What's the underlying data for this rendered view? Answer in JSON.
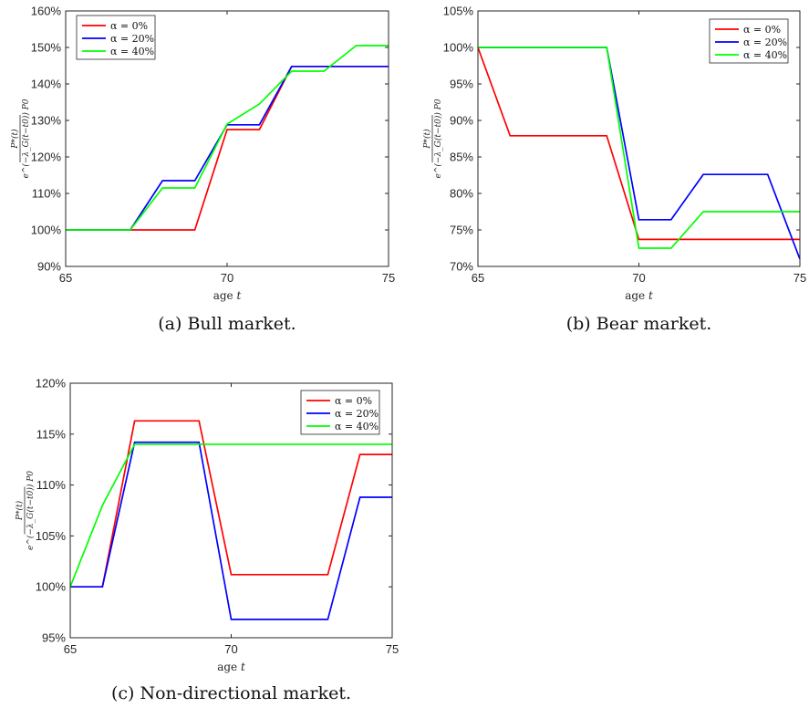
{
  "chart_data": [
    {
      "type": "line",
      "caption": "(a) Bull market.",
      "xlabel": "age t",
      "ylabel": "P*(t) / e^(−λ_G(t−t0)) P0",
      "x": [
        65,
        66,
        67,
        68,
        69,
        70,
        71,
        72,
        73,
        74,
        75
      ],
      "xlim": [
        65,
        75
      ],
      "ylim": [
        90,
        160
      ],
      "xticks": [
        "65",
        "70",
        "75"
      ],
      "yticks": [
        "90%",
        "100%",
        "110%",
        "120%",
        "130%",
        "140%",
        "150%",
        "160%"
      ],
      "legend_position": "top-left",
      "series": [
        {
          "name": "α = 0%",
          "color": "#ff0000",
          "values": [
            100,
            100,
            100,
            100,
            100,
            127.5,
            127.5,
            144.8,
            144.8,
            144.8,
            144.8
          ]
        },
        {
          "name": "α = 20%",
          "color": "#0000ff",
          "values": [
            100,
            100,
            100,
            113.5,
            113.5,
            128.8,
            128.8,
            144.8,
            144.8,
            144.8,
            144.8
          ]
        },
        {
          "name": "α = 40%",
          "color": "#00ff00",
          "values": [
            100,
            100,
            100,
            111.5,
            111.5,
            129.0,
            134.5,
            143.5,
            143.5,
            150.5,
            150.5
          ]
        }
      ]
    },
    {
      "type": "line",
      "caption": "(b) Bear market.",
      "xlabel": "age t",
      "ylabel": "P*(t) / e^(−λ_G(t−t0)) P0",
      "x": [
        65,
        66,
        67,
        68,
        69,
        70,
        71,
        72,
        73,
        74,
        75
      ],
      "xlim": [
        65,
        75
      ],
      "ylim": [
        70,
        105
      ],
      "xticks": [
        "65",
        "70",
        "75"
      ],
      "yticks": [
        "70%",
        "75%",
        "80%",
        "85%",
        "90%",
        "95%",
        "100%",
        "105%"
      ],
      "legend_position": "top-right",
      "series": [
        {
          "name": "α = 0%",
          "color": "#ff0000",
          "values": [
            100,
            87.9,
            87.9,
            87.9,
            87.9,
            73.7,
            73.7,
            73.7,
            73.7,
            73.7,
            73.7
          ]
        },
        {
          "name": "α = 20%",
          "color": "#0000ff",
          "values": [
            100,
            100,
            100,
            100,
            100,
            76.4,
            76.4,
            82.6,
            82.6,
            82.6,
            71.0
          ]
        },
        {
          "name": "α = 40%",
          "color": "#00ff00",
          "values": [
            100,
            100,
            100,
            100,
            100,
            72.5,
            72.5,
            77.5,
            77.5,
            77.5,
            77.5
          ]
        }
      ]
    },
    {
      "type": "line",
      "caption": "(c) Non-directional market.",
      "xlabel": "age t",
      "ylabel": "P*(t) / e^(−λ_G(t−t0)) P0",
      "x": [
        65,
        66,
        67,
        68,
        69,
        70,
        71,
        72,
        73,
        74,
        75
      ],
      "xlim": [
        65,
        75
      ],
      "ylim": [
        95,
        120
      ],
      "xticks": [
        "65",
        "70",
        "75"
      ],
      "yticks": [
        "95%",
        "100%",
        "105%",
        "110%",
        "115%",
        "120%"
      ],
      "legend_position": "top-right",
      "series": [
        {
          "name": "α = 0%",
          "color": "#ff0000",
          "values": [
            100,
            100,
            116.3,
            116.3,
            116.3,
            101.2,
            101.2,
            101.2,
            101.2,
            113.0,
            113.0
          ]
        },
        {
          "name": "α = 20%",
          "color": "#0000ff",
          "values": [
            100,
            100,
            114.2,
            114.2,
            114.2,
            96.8,
            96.8,
            96.8,
            96.8,
            108.8,
            108.8
          ]
        },
        {
          "name": "α = 40%",
          "color": "#00ff00",
          "values": [
            100,
            108.0,
            114.0,
            114.0,
            114.0,
            114.0,
            114.0,
            114.0,
            114.0,
            114.0,
            114.0
          ]
        }
      ]
    }
  ]
}
